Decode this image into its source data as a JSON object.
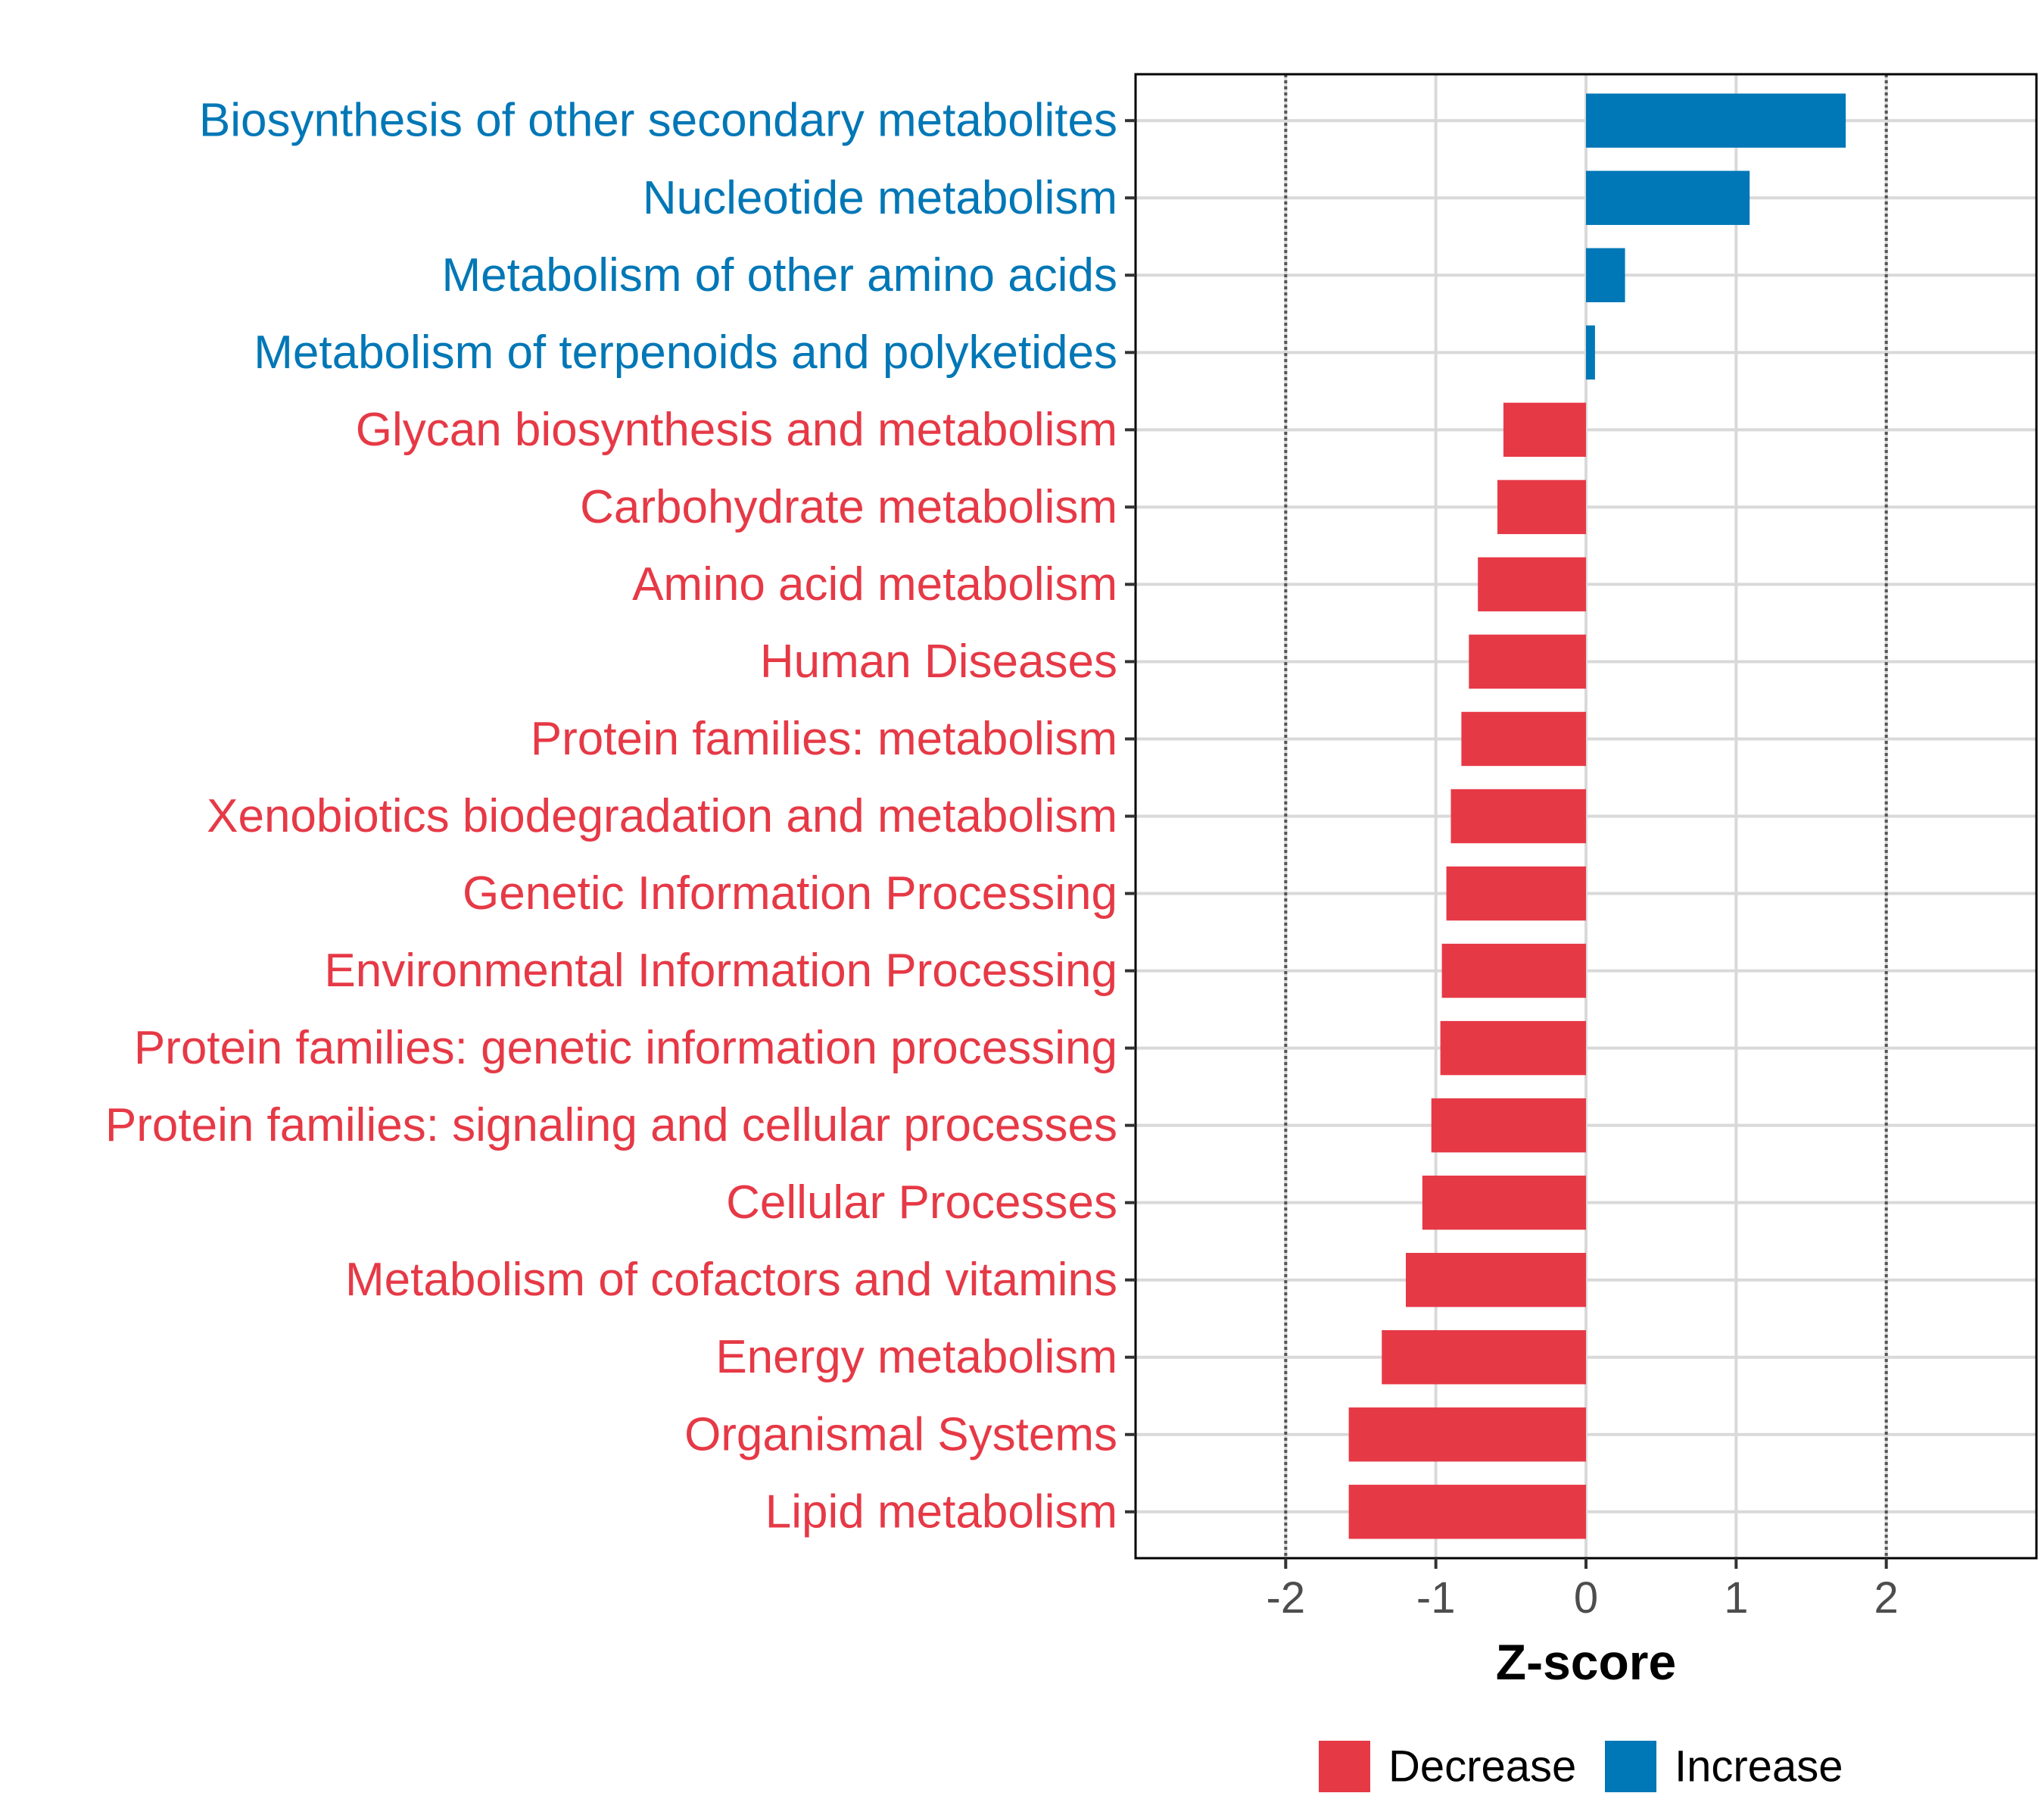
{
  "chart_data": {
    "type": "bar",
    "orientation": "horizontal",
    "xlabel": "Z-score",
    "xlim": [
      -3.0,
      3.0
    ],
    "x_ticks": [
      -2,
      -1,
      0,
      1,
      2
    ],
    "x_tick_labels": [
      "-2",
      "-1",
      "0",
      "1",
      "2"
    ],
    "reference_lines": [
      -2,
      2
    ],
    "grid": true,
    "categories": [
      "Biosynthesis of other secondary metabolites",
      "Nucleotide metabolism",
      "Metabolism of other amino acids",
      "Metabolism of terpenoids and polyketides",
      "Glycan biosynthesis and metabolism",
      "Carbohydrate metabolism",
      "Amino acid metabolism",
      "Human Diseases",
      "Protein families: metabolism",
      "Xenobiotics biodegradation and metabolism",
      "Genetic Information Processing",
      "Environmental Information Processing",
      "Protein families: genetic information processing",
      "Protein families: signaling and cellular processes",
      "Cellular Processes",
      "Metabolism of cofactors and vitamins",
      "Energy metabolism",
      "Organismal Systems",
      "Lipid metabolism"
    ],
    "values": [
      1.73,
      1.09,
      0.26,
      0.06,
      -0.55,
      -0.59,
      -0.72,
      -0.78,
      -0.83,
      -0.9,
      -0.93,
      -0.96,
      -0.97,
      -1.03,
      -1.09,
      -1.2,
      -1.36,
      -1.58,
      -1.58
    ],
    "groups": [
      "Increase",
      "Increase",
      "Increase",
      "Increase",
      "Decrease",
      "Decrease",
      "Decrease",
      "Decrease",
      "Decrease",
      "Decrease",
      "Decrease",
      "Decrease",
      "Decrease",
      "Decrease",
      "Decrease",
      "Decrease",
      "Decrease",
      "Decrease",
      "Decrease"
    ],
    "legend": [
      {
        "name": "Decrease",
        "color": "#E63946"
      },
      {
        "name": "Increase",
        "color": "#0077B6"
      }
    ],
    "legend_position": "bottom"
  },
  "colors": {
    "decrease": "#E63946",
    "increase": "#0077B6",
    "grid": "#d9d9d9",
    "frame": "#000000"
  }
}
